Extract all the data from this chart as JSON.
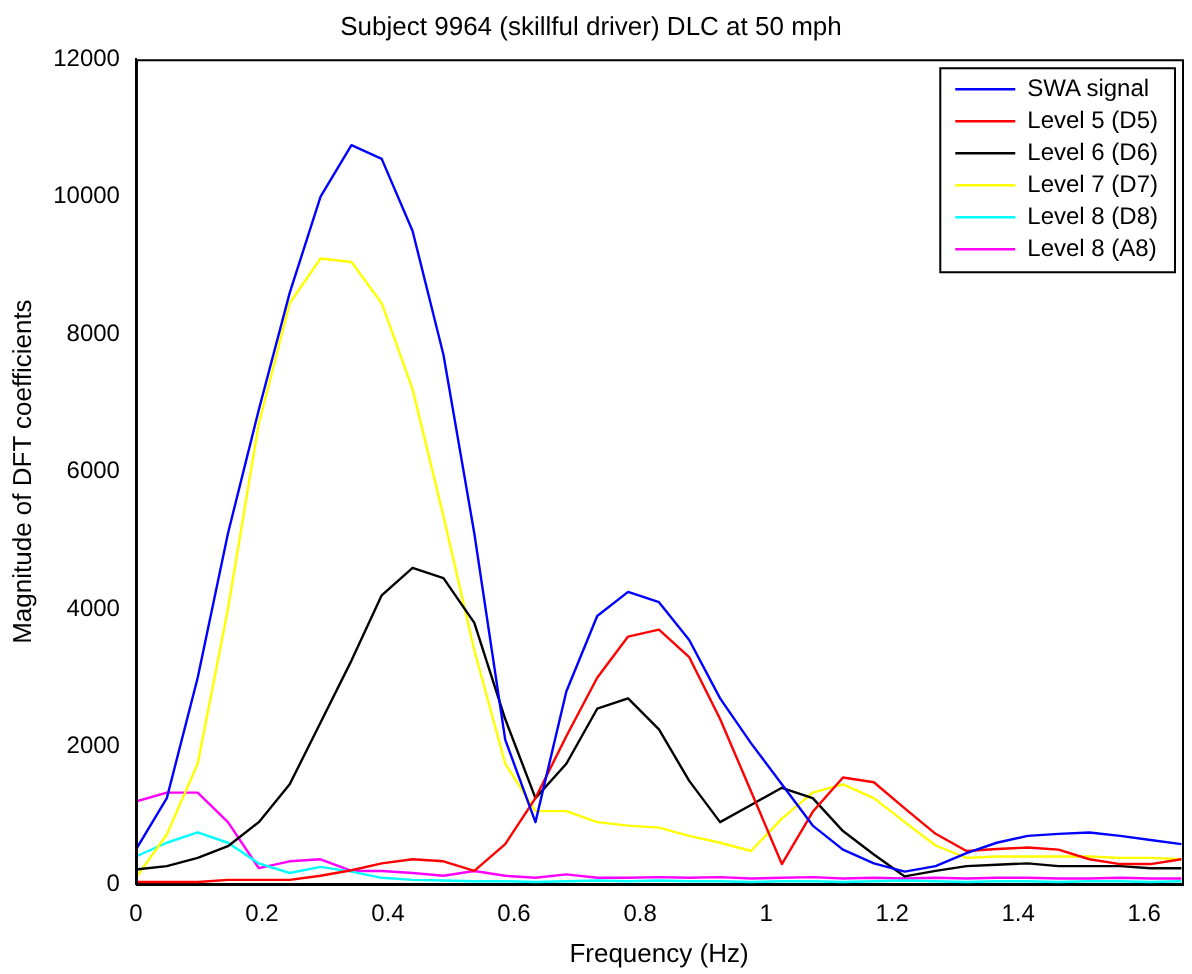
{
  "chart_data": {
    "type": "line",
    "title": "Subject 9964 (skillful driver) DLC at 50 mph",
    "xlabel": "Frequency (Hz)",
    "ylabel": "Magnitude of DFT coefficients",
    "x": [
      0,
      0.049,
      0.098,
      0.146,
      0.195,
      0.244,
      0.293,
      0.342,
      0.39,
      0.439,
      0.488,
      0.537,
      0.586,
      0.634,
      0.683,
      0.732,
      0.781,
      0.83,
      0.878,
      0.927,
      0.976,
      1.025,
      1.074,
      1.122,
      1.171,
      1.22,
      1.269,
      1.318,
      1.366,
      1.415,
      1.464,
      1.513,
      1.562,
      1.61,
      1.659
    ],
    "series": [
      {
        "name": "SWA signal",
        "color": "#0000ff",
        "values": [
          500,
          1250,
          3000,
          5100,
          6900,
          8600,
          10000,
          10750,
          10550,
          9500,
          7700,
          5100,
          2100,
          900,
          2800,
          3900,
          4250,
          4100,
          3550,
          2700,
          2050,
          1450,
          850,
          500,
          300,
          180,
          260,
          450,
          600,
          700,
          730,
          750,
          700,
          640,
          580
        ]
      },
      {
        "name": "Level 5 (D5)",
        "color": "#ff0000",
        "values": [
          30,
          30,
          30,
          60,
          60,
          60,
          120,
          200,
          300,
          360,
          330,
          190,
          580,
          1250,
          2150,
          3000,
          3600,
          3700,
          3300,
          2400,
          1350,
          290,
          1050,
          1550,
          1480,
          1100,
          730,
          480,
          510,
          530,
          500,
          360,
          290,
          290,
          360
        ]
      },
      {
        "name": "Level 6 (D6)",
        "color": "#000000",
        "values": [
          210,
          260,
          380,
          550,
          900,
          1450,
          2350,
          3250,
          4200,
          4600,
          4450,
          3800,
          2400,
          1250,
          1750,
          2550,
          2700,
          2250,
          1500,
          900,
          1150,
          1400,
          1250,
          770,
          430,
          110,
          190,
          260,
          280,
          300,
          260,
          260,
          260,
          230,
          230
        ]
      },
      {
        "name": "Level 7 (D7)",
        "color": "#ffff00",
        "values": [
          90,
          720,
          1750,
          4000,
          6700,
          8450,
          9100,
          9050,
          8450,
          7200,
          5350,
          3400,
          1750,
          1060,
          1060,
          900,
          850,
          820,
          700,
          600,
          480,
          950,
          1330,
          1450,
          1250,
          900,
          560,
          380,
          400,
          400,
          400,
          400,
          380,
          380,
          360
        ]
      },
      {
        "name": "Level 8 (D8)",
        "color": "#00ffff",
        "values": [
          400,
          600,
          750,
          600,
          300,
          160,
          250,
          180,
          90,
          60,
          50,
          40,
          40,
          30,
          40,
          50,
          40,
          50,
          40,
          40,
          30,
          40,
          40,
          30,
          40,
          50,
          40,
          30,
          40,
          40,
          30,
          40,
          40,
          30,
          40
        ]
      },
      {
        "name": "Level 8 (A8)",
        "color": "#ff00ff",
        "values": [
          1200,
          1330,
          1330,
          900,
          230,
          330,
          360,
          190,
          190,
          160,
          120,
          190,
          120,
          90,
          140,
          90,
          90,
          100,
          90,
          100,
          80,
          90,
          100,
          80,
          90,
          80,
          90,
          80,
          90,
          90,
          80,
          80,
          90,
          80,
          80
        ]
      }
    ],
    "xlim": [
      0,
      1.66
    ],
    "xticks": [
      0,
      0.2,
      0.4,
      0.6,
      0.8,
      1,
      1.2,
      1.4,
      1.6
    ],
    "ylim": [
      0,
      12000
    ],
    "yticks": [
      0,
      2000,
      4000,
      6000,
      8000,
      10000,
      12000
    ],
    "legend": "top right",
    "grid": false,
    "marker": "none",
    "line_style": "solid"
  }
}
